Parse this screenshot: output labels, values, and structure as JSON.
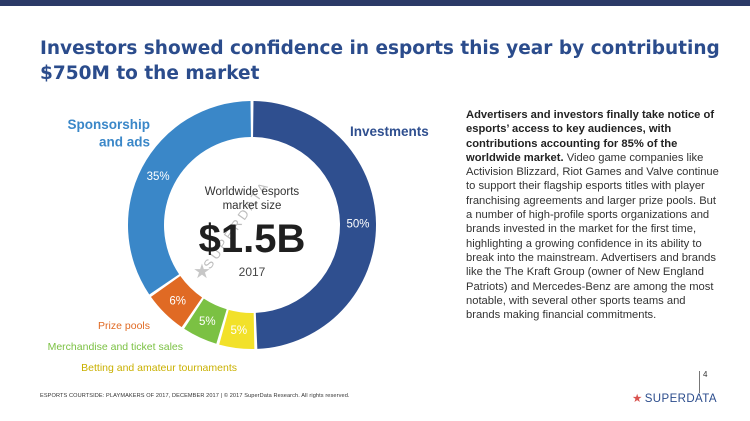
{
  "title": "Investors showed confidence in esports this year by contributing $750M to the market",
  "chart_data": {
    "type": "pie",
    "variant": "donut",
    "center": {
      "caption": "Worldwide esports market size",
      "value": "$1.5B",
      "year": "2017",
      "watermark": "SUPERDATA"
    },
    "slices": [
      {
        "label": "Investments",
        "value": 50,
        "value_label": "50%",
        "color": "#2f4f8f"
      },
      {
        "label": "Betting and amateur tournaments",
        "value": 5,
        "value_label": "5%",
        "color": "#f2e12a"
      },
      {
        "label": "Merchandise and ticket sales",
        "value": 5,
        "value_label": "5%",
        "color": "#7bc143"
      },
      {
        "label": "Prize pools",
        "value": 6,
        "value_label": "6%",
        "color": "#e06a24"
      },
      {
        "label": "Sponsorship and ads",
        "value": 35,
        "value_label": "35%",
        "color": "#3a87c8"
      }
    ]
  },
  "legend_colors": {
    "investments": "#2f4f8f",
    "sponsorship": "#3a87c8",
    "prize": "#e06a24",
    "merch": "#7bc143",
    "betting": "#c9b000"
  },
  "body": {
    "lead": "Advertisers and investors finally take notice of esports’ access to key audiences, with contributions accounting for 85% of the worldwide market.",
    "text": "Video game companies like Activision Blizzard, Riot Games and Valve continue to support their flagship esports titles with player franchising agreements and larger prize pools. But a number of high-profile sports organizations and brands invested in the market for the first time, highlighting a growing confidence in its ability to break into the mainstream. Advertisers and brands like the The Kraft Group (owner of New England Patriots) and Mercedes-Benz are among the most notable, with several other sports teams and brands making financial commitments."
  },
  "footer": "ESPORTS COURTSIDE: PLAYMAKERS OF 2017, DECEMBER 2017  |  © 2017 SuperData Research. All rights reserved.",
  "page_number": "4",
  "brand": {
    "star": "★",
    "name": "SUPERDATA"
  }
}
